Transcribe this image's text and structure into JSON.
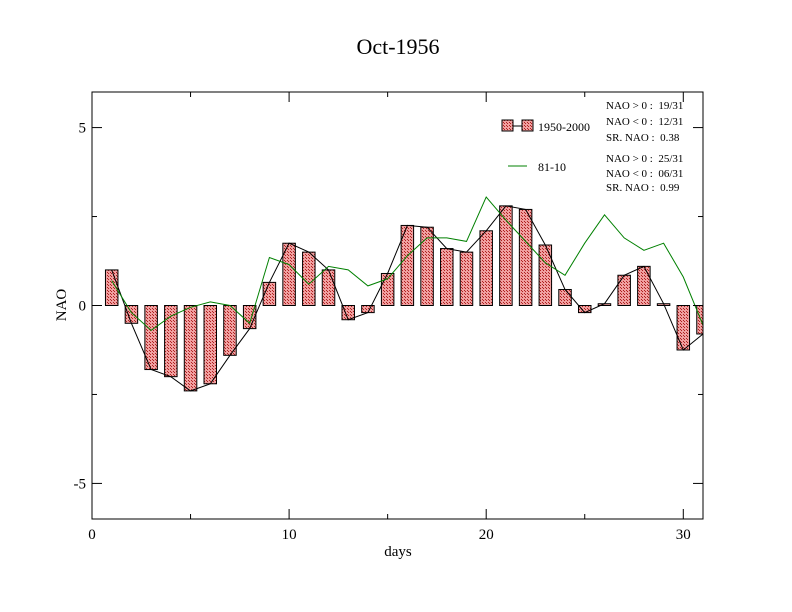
{
  "chart_data": {
    "type": "bar",
    "title": "Oct-1956",
    "xlabel": "days",
    "ylabel": "NAO",
    "xlim": [
      0,
      31
    ],
    "ylim": [
      -6,
      6
    ],
    "x_ticks": [
      0,
      10,
      20,
      30
    ],
    "y_ticks": [
      -5,
      0,
      5
    ],
    "y_tick_labels": [
      "-5",
      "0",
      "5"
    ],
    "grid": false,
    "legend_position": "top-right",
    "days": [
      1,
      2,
      3,
      4,
      5,
      6,
      7,
      8,
      9,
      10,
      11,
      12,
      13,
      14,
      15,
      16,
      17,
      18,
      19,
      20,
      21,
      22,
      23,
      24,
      25,
      26,
      27,
      28,
      29,
      30,
      31
    ],
    "series": [
      {
        "name": "1950-2000",
        "style": "bars-with-line",
        "color": "#e06060",
        "values": [
          1.0,
          -0.5,
          -1.8,
          -2.0,
          -2.4,
          -2.2,
          -1.4,
          -0.65,
          0.65,
          1.75,
          1.5,
          1.0,
          -0.4,
          -0.2,
          0.9,
          2.25,
          2.2,
          1.6,
          1.5,
          2.1,
          2.8,
          2.7,
          1.7,
          0.45,
          -0.2,
          0.05,
          0.85,
          1.1,
          0.05,
          -1.25,
          -0.8
        ]
      },
      {
        "name": "81-10",
        "style": "line",
        "color": "#008000",
        "values": [
          0.7,
          -0.2,
          -0.7,
          -0.3,
          -0.05,
          0.1,
          0.0,
          -0.5,
          1.35,
          1.15,
          0.6,
          1.1,
          1.0,
          0.55,
          0.75,
          1.4,
          1.9,
          1.9,
          1.8,
          3.05,
          2.4,
          1.8,
          1.2,
          0.85,
          1.75,
          2.55,
          1.9,
          1.55,
          1.75,
          0.8,
          -0.55
        ]
      }
    ],
    "stats_1950_2000": [
      "NAO > 0 :  19/31",
      "NAO < 0 :  12/31",
      "SR. NAO :  0.38"
    ],
    "stats_81_10": [
      "NAO > 0 :  25/31",
      "NAO < 0 :  06/31",
      "SR. NAO :  0.99"
    ]
  }
}
